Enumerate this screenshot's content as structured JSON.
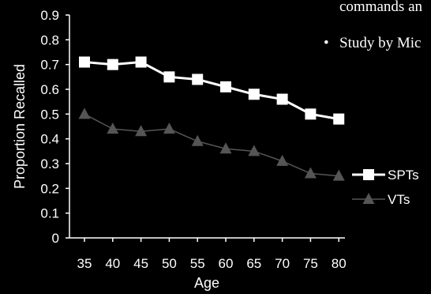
{
  "slide": {
    "text_line_1": "commands an",
    "bullet_symbol": "•",
    "bullet_text": "Study by Mic"
  },
  "colors": {
    "background": "#000000",
    "axis": "#ffffff",
    "spts": "#ffffff",
    "vts": "#555555"
  },
  "chart_data": {
    "type": "line",
    "xlabel": "Age",
    "ylabel": "Proportion Recalled",
    "categories": [
      "35",
      "40",
      "45",
      "50",
      "55",
      "60",
      "65",
      "70",
      "75",
      "80"
    ],
    "yticks": [
      "0",
      "0.1",
      "0.2",
      "0.3",
      "0.4",
      "0.5",
      "0.6",
      "0.7",
      "0.8",
      "0.9"
    ],
    "ylim": [
      0,
      0.9
    ],
    "grid": false,
    "legend_position": "right",
    "series": [
      {
        "name": "SPTs",
        "marker": "square",
        "color": "#ffffff",
        "values": [
          0.71,
          0.7,
          0.71,
          0.65,
          0.64,
          0.61,
          0.58,
          0.56,
          0.5,
          0.48
        ]
      },
      {
        "name": "VTs",
        "marker": "triangle",
        "color": "#555555",
        "values": [
          0.5,
          0.44,
          0.43,
          0.44,
          0.39,
          0.36,
          0.35,
          0.31,
          0.26,
          0.25
        ]
      }
    ]
  }
}
